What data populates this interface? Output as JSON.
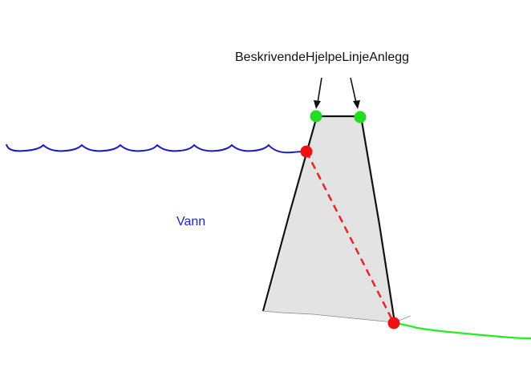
{
  "labels": {
    "helper_line": "BeskrivendeHjelpeLinjeAnlegg",
    "water": "Vann"
  },
  "colors": {
    "water_line": "#1a1acc",
    "water_label": "#2222cc",
    "terrain_line": "#22ee22",
    "dam_fill": "#e3e3e3",
    "dam_outline": "#111111",
    "helper_points": "#22dd22",
    "contact_points": "#ee1111",
    "contact_line": "#ee2222",
    "text": "#111111"
  }
}
